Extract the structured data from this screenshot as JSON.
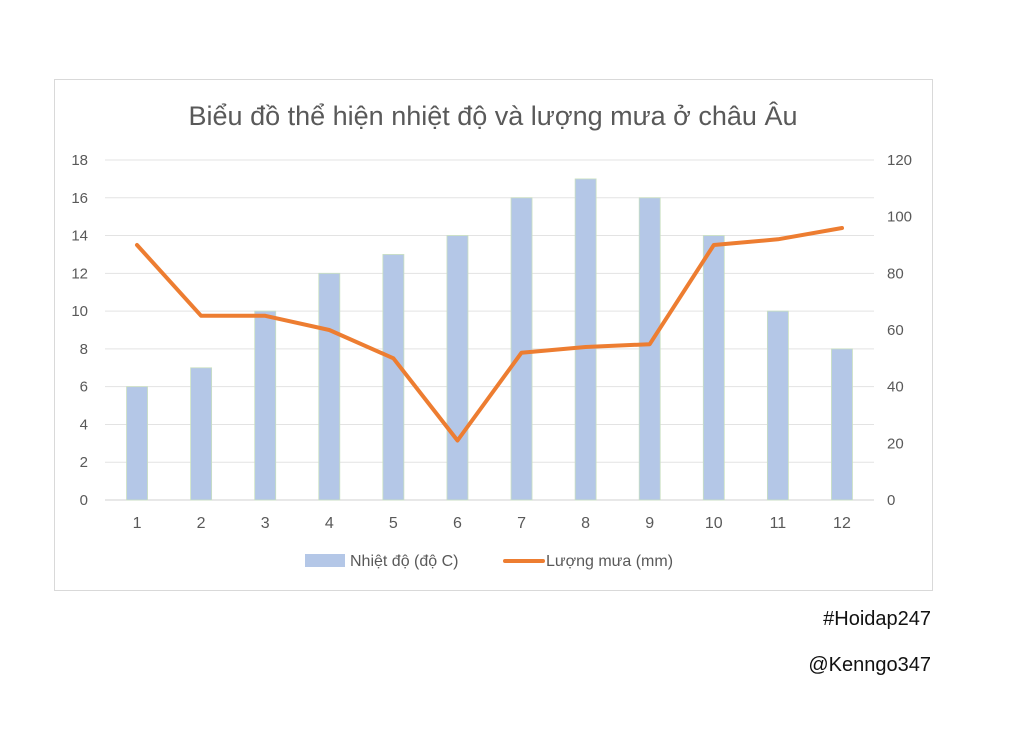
{
  "chart_data": {
    "type": "bar",
    "title": "Biểu đồ thể hiện nhiệt độ và lượng mưa ở châu Âu",
    "categories": [
      "1",
      "2",
      "3",
      "4",
      "5",
      "6",
      "7",
      "8",
      "9",
      "10",
      "11",
      "12"
    ],
    "series": [
      {
        "name": "Nhiệt độ (độ C)",
        "type": "bar",
        "axis": "left",
        "color": "#b4c7e7",
        "values": [
          6,
          7,
          10,
          12,
          13,
          14,
          16,
          17,
          16,
          14,
          10,
          8
        ]
      },
      {
        "name": "Lượng mưa (mm)",
        "type": "line",
        "axis": "right",
        "color": "#ed7d31",
        "values": [
          90,
          65,
          65,
          60,
          50,
          21,
          52,
          54,
          55,
          90,
          92,
          96
        ]
      }
    ],
    "y_left": {
      "min": 0,
      "max": 18,
      "ticks": [
        "0",
        "2",
        "4",
        "6",
        "8",
        "10",
        "12",
        "14",
        "16",
        "18"
      ]
    },
    "y_right": {
      "min": 0,
      "max": 120,
      "ticks": [
        "0",
        "20",
        "40",
        "60",
        "80",
        "100",
        "120"
      ]
    },
    "grid": true,
    "legend": "bottom"
  },
  "watermark": {
    "tag": "#Hoidap247",
    "user": "@Kenngo347"
  }
}
